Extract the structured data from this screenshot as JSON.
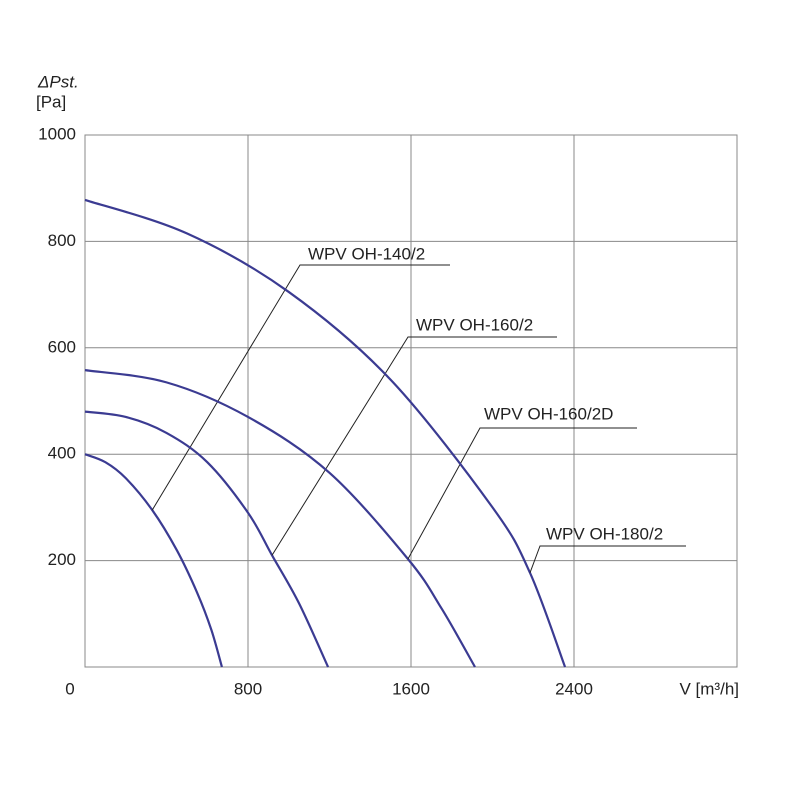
{
  "chart_data": {
    "type": "line",
    "y_label": "ΔPst.",
    "y_unit": "[Pa]",
    "x_label": "V [m³/h]",
    "xlim": [
      0,
      3200
    ],
    "xticks": [
      0,
      800,
      1600,
      2400
    ],
    "ylim": [
      0,
      1000
    ],
    "yticks": [
      200,
      400,
      600,
      800,
      1000
    ],
    "grid": true,
    "series": [
      {
        "name": "WPV OH-140/2",
        "color": "#3b3b92",
        "x": [
          0,
          100,
          200,
          330,
          450,
          550,
          620,
          672
        ],
        "values": [
          400,
          385,
          355,
          295,
          220,
          140,
          70,
          0
        ]
      },
      {
        "name": "WPV OH-160/2",
        "color": "#3b3b92",
        "x": [
          0,
          200,
          400,
          600,
          800,
          918,
          1050,
          1193
        ],
        "values": [
          480,
          470,
          440,
          385,
          290,
          210,
          120,
          0
        ]
      },
      {
        "name": "WPV OH-160/2D",
        "color": "#3b3b92",
        "x": [
          0,
          400,
          800,
          1200,
          1585,
          1750,
          1914
        ],
        "values": [
          558,
          535,
          470,
          365,
          203,
          110,
          0
        ]
      },
      {
        "name": "WPV OH-180/2",
        "color": "#3b3b92",
        "x": [
          0,
          500,
          1000,
          1500,
          2000,
          2184,
          2356
        ],
        "values": [
          878,
          815,
          705,
          540,
          300,
          177,
          0
        ]
      }
    ]
  }
}
